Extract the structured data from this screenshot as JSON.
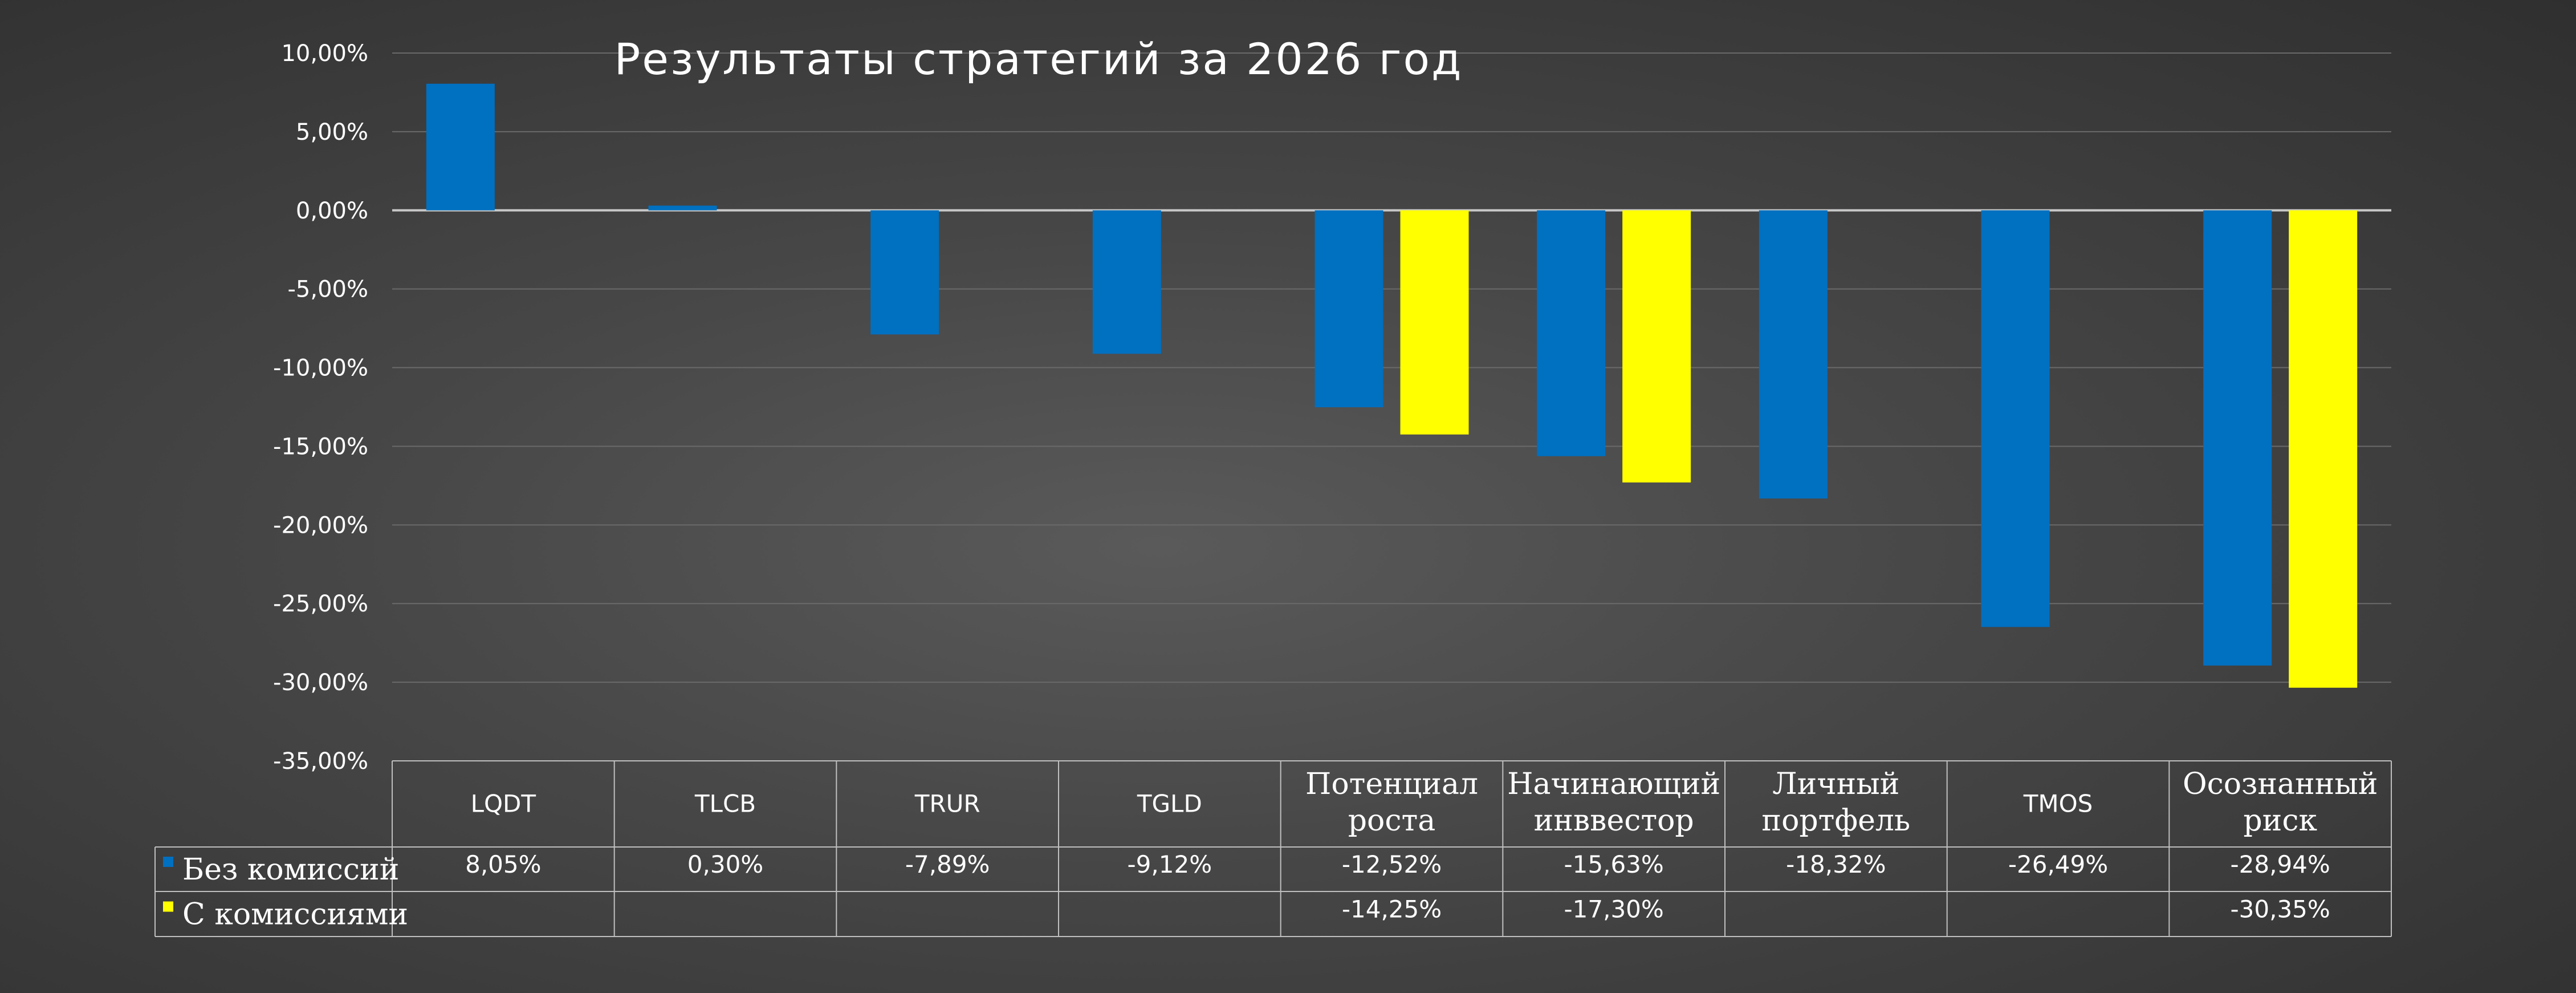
{
  "chart_data": {
    "type": "bar",
    "title": "Результаты стратегий за 2026 год",
    "categories": [
      [
        "LQDT"
      ],
      [
        "TLCB"
      ],
      [
        "TRUR"
      ],
      [
        "TGLD"
      ],
      [
        "Потенциал",
        "роста"
      ],
      [
        "Начинающий",
        "инввестор"
      ],
      [
        "Личный",
        "портфель"
      ],
      [
        "TMOS"
      ],
      [
        "Осознанный",
        "риск"
      ]
    ],
    "series": [
      {
        "name": "Без комиссий",
        "color": "#0070c0",
        "values": [
          8.05,
          0.3,
          -7.89,
          -9.12,
          -12.52,
          -15.63,
          -18.32,
          -26.49,
          -28.94
        ],
        "labels": [
          "8,05%",
          "0,30%",
          "-7,89%",
          "-9,12%",
          "-12,52%",
          "-15,63%",
          "-18,32%",
          "-26,49%",
          "-28,94%"
        ]
      },
      {
        "name": "С комиссиями",
        "color": "#ffff00",
        "values": [
          null,
          null,
          null,
          null,
          -14.25,
          -17.3,
          null,
          null,
          -30.35
        ],
        "labels": [
          "",
          "",
          "",
          "",
          "-14,25%",
          "-17,30%",
          "",
          "",
          "-30,35%"
        ]
      }
    ],
    "ylim": [
      -35,
      10
    ],
    "yticks": [
      10,
      5,
      0,
      -5,
      -10,
      -15,
      -20,
      -25,
      -30,
      -35
    ],
    "ytick_labels": [
      "10,00%",
      "5,00%",
      "0,00%",
      "-5,00%",
      "-10,00%",
      "-15,00%",
      "-20,00%",
      "-25,00%",
      "-30,00%",
      "-35,00%"
    ],
    "grid": true,
    "legend": "data-table",
    "xlabel": "",
    "ylabel": ""
  }
}
